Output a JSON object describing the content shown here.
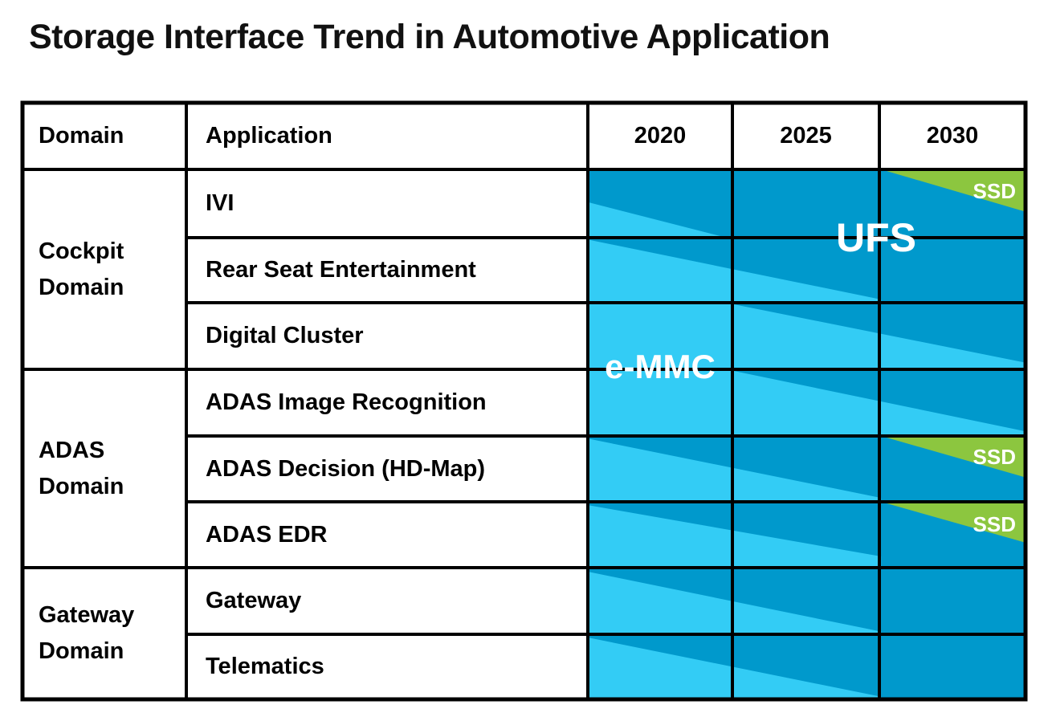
{
  "title": "Storage Interface Trend in Automotive Application",
  "colors": {
    "emmc": "#33CCF5",
    "ufs": "#0099CC",
    "ssd": "#8CC63F",
    "grid": "#000000",
    "label_text": "#FFFFFF"
  },
  "labels": {
    "emmc": "e-MMC",
    "ufs": "UFS",
    "ssd": "SSD"
  },
  "table": {
    "headers": {
      "domain": "Domain",
      "application": "Application",
      "years": [
        "2020",
        "2025",
        "2030"
      ]
    },
    "groups": [
      {
        "domain": "Cockpit Domain",
        "apps": [
          "IVI",
          "Rear Seat Entertainment",
          "Digital Cluster"
        ]
      },
      {
        "domain": "ADAS Domain",
        "apps": [
          "ADAS Image Recognition",
          "ADAS Decision (HD-Map)",
          "ADAS EDR"
        ]
      },
      {
        "domain": "Gateway Domain",
        "apps": [
          "Gateway",
          "Telematics"
        ]
      }
    ]
  },
  "chart_data": {
    "type": "heatmap",
    "subtype": "interface-transition-timeline",
    "x_years": [
      2020,
      2025,
      2030
    ],
    "legend": [
      {
        "name": "e-MMC",
        "color": "#33CCF5"
      },
      {
        "name": "UFS",
        "color": "#0099CC"
      },
      {
        "name": "SSD",
        "color": "#8CC63F"
      }
    ],
    "rows": [
      {
        "app": "IVI",
        "from": "e-MMC",
        "to": "UFS",
        "ssd_in_2030": true,
        "light": [
          [
            0,
            0.48
          ],
          [
            0.317,
            1
          ],
          [
            0,
            1
          ]
        ],
        "green": [
          [
            0.67,
            0
          ],
          [
            1,
            0
          ],
          [
            1,
            0.62
          ]
        ]
      },
      {
        "app": "Rear Seat Entertainment",
        "from": "e-MMC",
        "to": "UFS",
        "ssd_in_2030": false,
        "light": [
          [
            0,
            0.03
          ],
          [
            0.67,
            0.95
          ],
          [
            0.67,
            1
          ],
          [
            0,
            1
          ]
        ]
      },
      {
        "app": "Digital Cluster",
        "from": "e-MMC",
        "to": "UFS",
        "ssd_in_2030": false,
        "light": [
          [
            0,
            0
          ],
          [
            0.33,
            0.02
          ],
          [
            1,
            0.9
          ],
          [
            1,
            1
          ],
          [
            0,
            1
          ]
        ]
      },
      {
        "app": "ADAS Image Recognition",
        "from": "e-MMC",
        "to": "UFS",
        "ssd_in_2030": false,
        "light": [
          [
            0,
            0
          ],
          [
            0.33,
            0.02
          ],
          [
            1,
            0.93
          ],
          [
            1,
            1
          ],
          [
            0,
            1
          ]
        ]
      },
      {
        "app": "ADAS Decision (HD-Map)",
        "from": "e-MMC",
        "to": "UFS",
        "ssd_in_2030": true,
        "light": [
          [
            0,
            0.04
          ],
          [
            0.67,
            0.94
          ],
          [
            0.67,
            1
          ],
          [
            0,
            1
          ]
        ],
        "green": [
          [
            0.67,
            0
          ],
          [
            1,
            0
          ],
          [
            1,
            0.63
          ]
        ]
      },
      {
        "app": "ADAS EDR",
        "from": "e-MMC",
        "to": "UFS",
        "ssd_in_2030": true,
        "light": [
          [
            0,
            0.05
          ],
          [
            0.67,
            0.83
          ],
          [
            0.67,
            1
          ],
          [
            0,
            1
          ]
        ],
        "green": [
          [
            0.67,
            0
          ],
          [
            1,
            0
          ],
          [
            1,
            0.62
          ]
        ]
      },
      {
        "app": "Gateway",
        "from": "e-MMC",
        "to": "UFS",
        "ssd_in_2030": false,
        "light": [
          [
            0,
            0.06
          ],
          [
            0.67,
            0.96
          ],
          [
            0.67,
            1
          ],
          [
            0,
            1
          ]
        ]
      },
      {
        "app": "Telematics",
        "from": "e-MMC",
        "to": "UFS",
        "ssd_in_2030": false,
        "light": [
          [
            0,
            0.05
          ],
          [
            0.67,
            0.96
          ],
          [
            0.67,
            1
          ],
          [
            0,
            1
          ]
        ]
      }
    ]
  }
}
